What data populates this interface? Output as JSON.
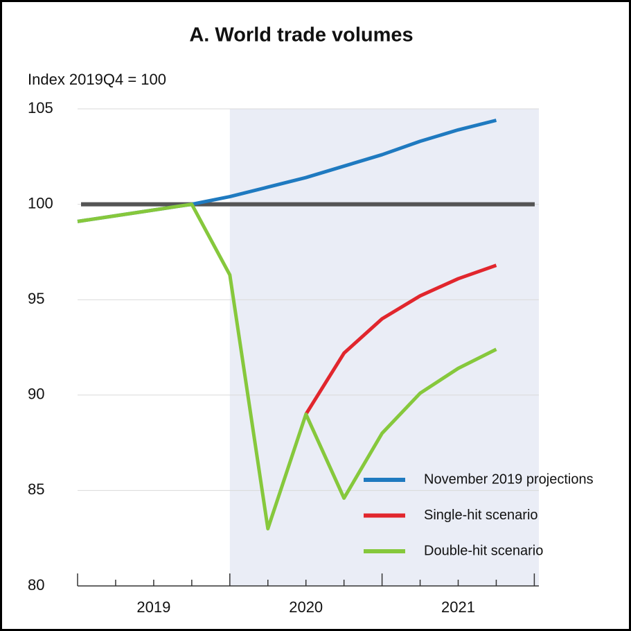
{
  "chart_data": {
    "type": "line",
    "title": "A. World trade volumes",
    "subtitle": "Index 2019Q4 = 100",
    "x": [
      2019,
      2019.25,
      2019.5,
      2019.75,
      2020,
      2020.25,
      2020.5,
      2020.75,
      2021,
      2021.25,
      2021.5,
      2021.75
    ],
    "series": [
      {
        "name": "November 2019 projections",
        "color": "#1f7ac0",
        "values": [
          99.1,
          99.4,
          99.7,
          100.0,
          100.4,
          100.9,
          101.4,
          102.0,
          102.6,
          103.3,
          103.9,
          104.4
        ]
      },
      {
        "name": "Single-hit scenario",
        "color": "#e1262d",
        "values": [
          null,
          null,
          null,
          null,
          null,
          null,
          89.0,
          92.2,
          94.0,
          95.2,
          96.1,
          96.8
        ]
      },
      {
        "name": "Double-hit scenario",
        "color": "#86c83c",
        "values": [
          99.1,
          99.4,
          99.7,
          100.0,
          96.3,
          83.0,
          89.0,
          84.6,
          88.0,
          90.1,
          91.4,
          92.4
        ]
      }
    ],
    "xlim": [
      2019,
      2022.03
    ],
    "xticks": [
      {
        "value": 2019.5,
        "label": "2019"
      },
      {
        "value": 2020.5,
        "label": "2020"
      },
      {
        "value": 2021.5,
        "label": "2021"
      }
    ],
    "xminorticks": [
      2019,
      2019.25,
      2019.5,
      2019.75,
      2020,
      2020.25,
      2020.5,
      2020.75,
      2021,
      2021.25,
      2021.5,
      2021.75,
      2022
    ],
    "ylim": [
      80,
      105
    ],
    "yticks": [
      80,
      85,
      90,
      95,
      100,
      105
    ],
    "grid": true,
    "reference_line": 100,
    "shaded_region": [
      2020,
      2022.03
    ],
    "legend": "lower right"
  }
}
